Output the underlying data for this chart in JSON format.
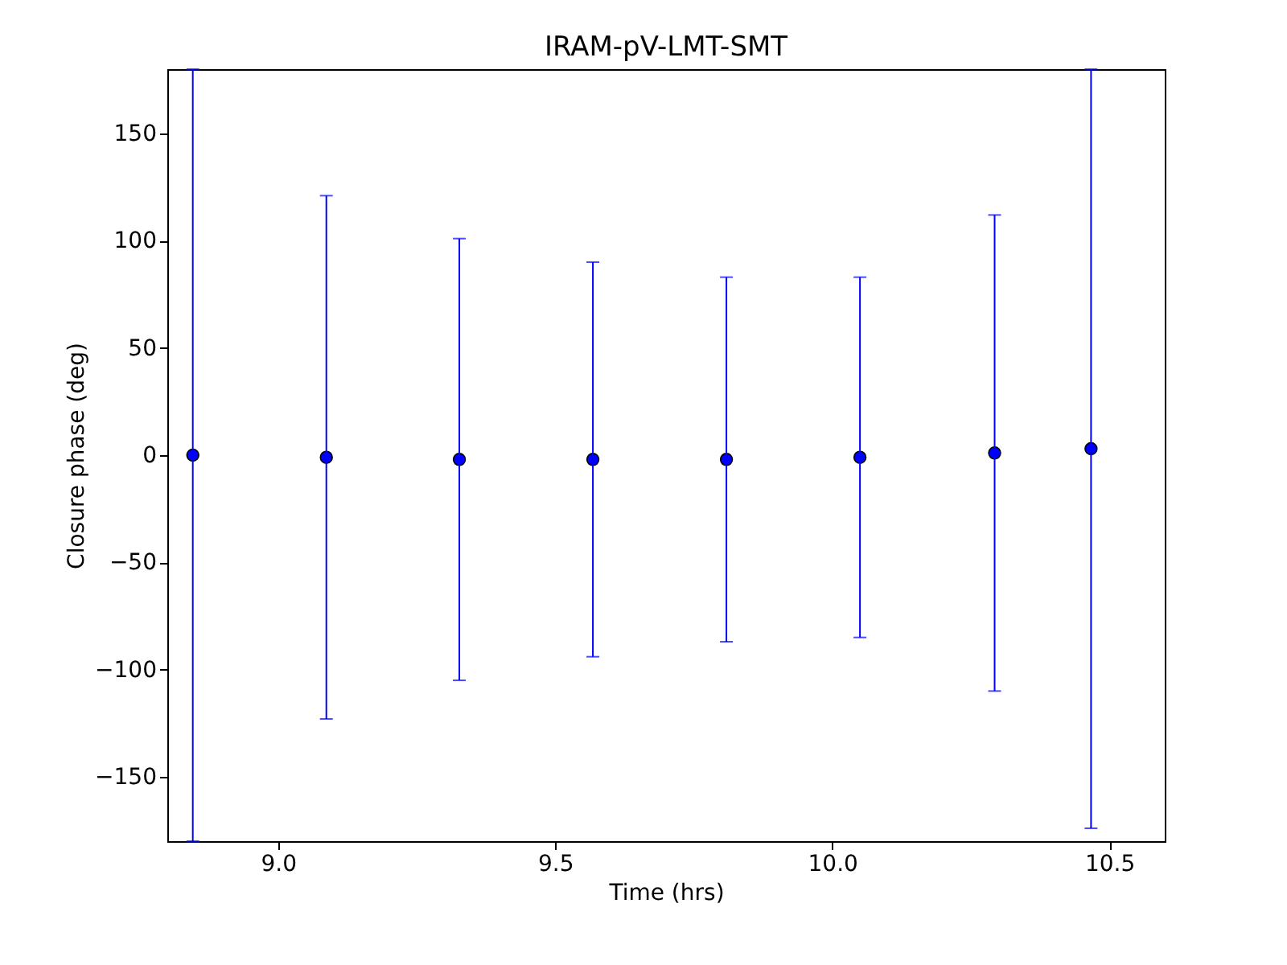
{
  "chart_data": {
    "type": "scatter",
    "title": "IRAM-pV-LMT-SMT",
    "xlabel": "Time (hrs)",
    "ylabel": "Closure phase (deg)",
    "x": [
      8.846,
      9.087,
      9.327,
      9.568,
      9.809,
      10.05,
      10.293,
      10.467
    ],
    "series": [
      {
        "color": "#0000ff",
        "values": [
          0,
          -1,
          -2,
          -2,
          -2,
          -1,
          1,
          3
        ],
        "errors": [
          180,
          122,
          103,
          92,
          85,
          84,
          111,
          177
        ]
      }
    ],
    "xlim": [
      8.8,
      10.6
    ],
    "xticks": [
      {
        "value": 9,
        "label": "9.0"
      },
      {
        "value": 9.5,
        "label": "9.5"
      },
      {
        "value": 10,
        "label": "10.0"
      },
      {
        "value": 10.5,
        "label": "10.5"
      }
    ],
    "ylim": [
      -180,
      180
    ],
    "yticks": [
      -150,
      -100,
      -50,
      0,
      50,
      100,
      150
    ],
    "marker": "circle",
    "grid": false
  }
}
